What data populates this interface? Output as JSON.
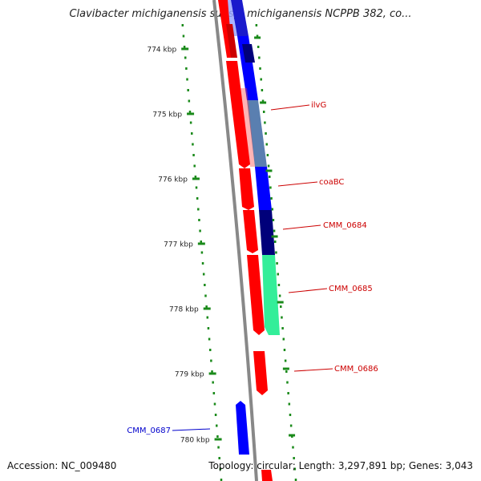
{
  "title": "Clavibacter michiganensis subsp. michiganensis NCPPB 382, co...",
  "ruler": {
    "color": "#1a8a1a",
    "ticks": [
      {
        "label": "774 kbp"
      },
      {
        "label": "775 kbp"
      },
      {
        "label": "776 kbp"
      },
      {
        "label": "777 kbp"
      },
      {
        "label": "778 kbp"
      },
      {
        "label": "779 kbp"
      },
      {
        "label": "780 kbp"
      }
    ]
  },
  "colors": {
    "forward": "#ff0000",
    "reverse": "#0000ff",
    "reverse_dark": "#00007a",
    "light_blue": "#9aa6ff",
    "steel": "#5a7fb0",
    "mint": "#33ee99",
    "backbone": "#888888",
    "label_red": "#cc0000",
    "label_blue": "#0000cc"
  },
  "genes": [
    {
      "name": "ilvG",
      "strand": "reverse"
    },
    {
      "name": "coaBC",
      "strand": "reverse"
    },
    {
      "name": "CMM_0684",
      "strand": "reverse"
    },
    {
      "name": "CMM_0685",
      "strand": "reverse"
    },
    {
      "name": "CMM_0686",
      "strand": "forward"
    },
    {
      "name": "CMM_0687",
      "strand": "reverse"
    }
  ],
  "footer": {
    "accession_label": "Accession:",
    "accession": "NC_009480",
    "topology_label": "Topology:",
    "topology": "circular;",
    "length_label": "Length:",
    "length": "3,297,891 bp;",
    "genes_label": "Genes:",
    "genes": "3,043"
  }
}
